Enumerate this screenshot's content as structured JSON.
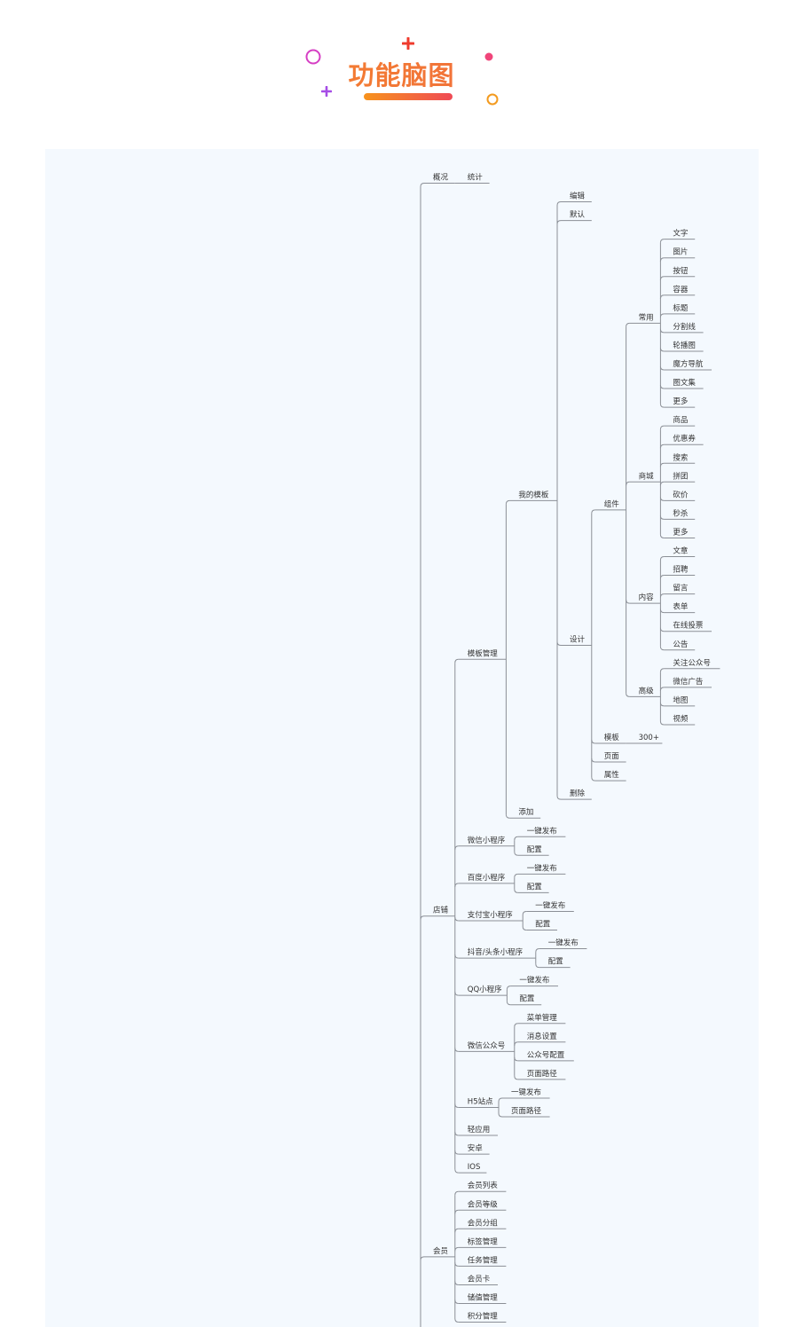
{
  "title": "功能脑图",
  "colors": {
    "line": "#8b8f96",
    "text": "#333333",
    "highlight": "#d24545",
    "panel": "#f4f9fe"
  },
  "mindmap": {
    "nodes": [
      {
        "label": "概况",
        "children": [
          {
            "label": "统计"
          }
        ]
      },
      {
        "label": "店铺",
        "children": [
          {
            "label": "模板管理",
            "children": [
              {
                "label": "我的模板",
                "children": [
                  {
                    "label": "编辑"
                  },
                  {
                    "label": "默认"
                  },
                  {
                    "label": "设计",
                    "children": [
                      {
                        "label": "组件",
                        "children": [
                          {
                            "label": "常用",
                            "children": [
                              {
                                "label": "文字"
                              },
                              {
                                "label": "图片"
                              },
                              {
                                "label": "按钮"
                              },
                              {
                                "label": "容器"
                              },
                              {
                                "label": "标题"
                              },
                              {
                                "label": "分割线"
                              },
                              {
                                "label": "轮播图"
                              },
                              {
                                "label": "魔方导航"
                              },
                              {
                                "label": "图文集"
                              },
                              {
                                "label": "更多"
                              }
                            ]
                          },
                          {
                            "label": "商城",
                            "children": [
                              {
                                "label": "商品"
                              },
                              {
                                "label": "优惠券"
                              },
                              {
                                "label": "搜索"
                              },
                              {
                                "label": "拼团"
                              },
                              {
                                "label": "砍价"
                              },
                              {
                                "label": "秒杀"
                              },
                              {
                                "label": "更多"
                              }
                            ]
                          },
                          {
                            "label": "内容",
                            "children": [
                              {
                                "label": "文章"
                              },
                              {
                                "label": "招聘"
                              },
                              {
                                "label": "留言"
                              },
                              {
                                "label": "表单"
                              },
                              {
                                "label": "在线投票"
                              },
                              {
                                "label": "公告"
                              }
                            ]
                          },
                          {
                            "label": "高级",
                            "children": [
                              {
                                "label": "关注公众号"
                              },
                              {
                                "label": "微信广告"
                              },
                              {
                                "label": "地图"
                              },
                              {
                                "label": "视频"
                              }
                            ]
                          }
                        ]
                      },
                      {
                        "label": "模板",
                        "children": [
                          {
                            "label": "300+"
                          }
                        ]
                      },
                      {
                        "label": "页面"
                      },
                      {
                        "label": "属性"
                      }
                    ]
                  },
                  {
                    "label": "删除"
                  }
                ]
              },
              {
                "label": "添加"
              }
            ]
          },
          {
            "label": "微信小程序",
            "children": [
              {
                "label": "一键发布"
              },
              {
                "label": "配置"
              }
            ]
          },
          {
            "label": "百度小程序",
            "children": [
              {
                "label": "一键发布"
              },
              {
                "label": "配置"
              }
            ]
          },
          {
            "label": "支付宝小程序",
            "children": [
              {
                "label": "一键发布"
              },
              {
                "label": "配置"
              }
            ]
          },
          {
            "label": "抖音/头条小程序",
            "children": [
              {
                "label": "一键发布"
              },
              {
                "label": "配置"
              }
            ]
          },
          {
            "label": "QQ小程序",
            "children": [
              {
                "label": "一键发布"
              },
              {
                "label": "配置"
              }
            ]
          },
          {
            "label": "微信公众号",
            "children": [
              {
                "label": "菜单管理"
              },
              {
                "label": "消息设置"
              },
              {
                "label": "公众号配置"
              },
              {
                "label": "页面路径"
              }
            ]
          },
          {
            "label": "H5站点",
            "children": [
              {
                "label": "一键发布"
              },
              {
                "label": "页面路径"
              }
            ]
          },
          {
            "label": "轻应用",
            "highlight": true
          },
          {
            "label": "安卓",
            "highlight": true
          },
          {
            "label": "IOS",
            "highlight": true
          }
        ]
      },
      {
        "label": "会员",
        "children": [
          {
            "label": "会员列表"
          },
          {
            "label": "会员等级"
          },
          {
            "label": "会员分组"
          },
          {
            "label": "标签管理"
          },
          {
            "label": "任务管理"
          },
          {
            "label": "会员卡"
          },
          {
            "label": "储值管理"
          },
          {
            "label": "积分管理"
          }
        ]
      }
    ]
  }
}
